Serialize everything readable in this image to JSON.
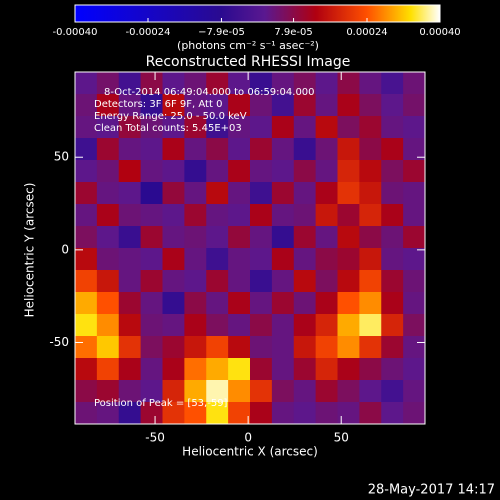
{
  "chart_data": {
    "type": "heatmap",
    "title": "Reconstructed RHESSI Image",
    "x_label": "Heliocentric X (arcsec)",
    "y_label": "Heliocentric Y (arcsec)",
    "xlim": [
      -93,
      95
    ],
    "ylim": [
      -94,
      96
    ],
    "xticks": [
      -50,
      0,
      50
    ],
    "yticks": [
      -50,
      0,
      50
    ],
    "annotations": [
      "8-Oct-2014 06:49:04.000 to 06:59:04.000",
      "Detectors: 3F 6F 9F, Att 0",
      "Energy Range: 25.0 - 50.0 keV",
      "Clean     Total counts: 5.45E+03"
    ],
    "peak_label": "Position of Peak = [53,-59]",
    "timestamp": "28-May-2017 14:17",
    "colorbar": {
      "label": "(photons cm⁻² s⁻¹ asec⁻²)",
      "lim": [
        -0.0004,
        0.0004
      ],
      "ticks": [
        {
          "value": -0.0004,
          "label": "-0.00040"
        },
        -0.00024,
        {
          "value": -7.9e-05,
          "label": "−7.9e-05"
        },
        {
          "value": 7.9e-05,
          "label": "7.9e-05"
        },
        0.00024,
        {
          "value": 0.0004,
          "label": "0.00040"
        }
      ],
      "colorscale": [
        [
          0,
          "#0000ff"
        ],
        [
          0.4,
          "#2a0a90"
        ],
        [
          0.52,
          "#5a1890"
        ],
        [
          0.66,
          "#b00010"
        ],
        [
          0.8,
          "#ff5000"
        ],
        [
          0.92,
          "#ffe000"
        ],
        [
          1,
          "#ffffff"
        ]
      ]
    },
    "z": [
      [
        2e-05,
        5e-05,
        -3e-05,
        8e-05,
        2e-05,
        4e-05,
        0.0001,
        2e-05,
        -5e-05,
        3e-05,
        6e-05,
        2e-05,
        8e-05,
        3e-05,
        -2e-05,
        4e-05
      ],
      [
        4e-05,
        0.00012,
        3e-05,
        -6e-05,
        0.00014,
        3e-05,
        2e-05,
        0.00012,
        4e-05,
        -3e-05,
        0.0001,
        3e-05,
        0.00012,
        6e-05,
        2e-05,
        5e-05
      ],
      [
        3e-05,
        2e-05,
        9e-05,
        4e-05,
        2e-05,
        0.0001,
        -4e-05,
        3e-05,
        2e-05,
        0.00012,
        3e-05,
        0.00014,
        6e-05,
        0.0001,
        3e-05,
        2e-05
      ],
      [
        -4e-05,
        0.0001,
        3e-05,
        2e-05,
        0.00012,
        3e-05,
        8e-05,
        2e-05,
        0.0001,
        3e-05,
        -5e-05,
        4e-05,
        0.00016,
        8e-05,
        0.00012,
        3e-05
      ],
      [
        2e-05,
        4e-05,
        0.00013,
        3e-05,
        2e-05,
        -6e-05,
        3e-05,
        0.00012,
        3e-05,
        2e-05,
        8e-05,
        3e-05,
        0.00018,
        0.00014,
        6e-05,
        0.0001
      ],
      [
        0.0001,
        3e-05,
        2e-05,
        -8e-05,
        9e-05,
        3e-05,
        0.00014,
        3e-05,
        -4e-05,
        0.0001,
        3e-05,
        0.00012,
        0.0002,
        0.00016,
        4e-05,
        3e-05
      ],
      [
        3e-05,
        0.00012,
        4e-05,
        3e-05,
        2e-05,
        0.0001,
        3e-05,
        2e-05,
        0.00012,
        3e-05,
        4e-05,
        0.00016,
        0.0001,
        0.00018,
        0.00012,
        3e-05
      ],
      [
        6e-05,
        2e-05,
        -5e-05,
        0.0001,
        3e-05,
        4e-05,
        2e-05,
        9e-05,
        3e-05,
        -6e-05,
        0.0001,
        3e-05,
        0.00014,
        8e-05,
        4e-05,
        0.0001
      ],
      [
        0.00014,
        4e-05,
        3e-05,
        2e-05,
        0.00012,
        3e-05,
        -4e-05,
        3e-05,
        2e-05,
        0.00012,
        3e-05,
        8e-05,
        0.0001,
        0.00016,
        3e-05,
        2e-05
      ],
      [
        0.00022,
        0.00016,
        3e-05,
        0.0001,
        3e-05,
        2e-05,
        0.0001,
        3e-05,
        -5e-05,
        3e-05,
        0.00014,
        6e-05,
        0.00014,
        0.00022,
        0.0001,
        4e-05
      ],
      [
        0.0003,
        0.00024,
        0.0001,
        3e-05,
        -6e-05,
        8e-05,
        3e-05,
        0.00012,
        3e-05,
        0.0001,
        4e-05,
        0.00012,
        0.00024,
        0.00028,
        0.00012,
        3e-05
      ],
      [
        0.00034,
        0.00028,
        0.00014,
        4e-05,
        3e-05,
        0.00012,
        6e-05,
        3e-05,
        8e-05,
        3e-05,
        0.00012,
        0.00018,
        0.0003,
        0.00036,
        0.00018,
        6e-05
      ],
      [
        0.00026,
        0.00032,
        0.0002,
        6e-05,
        0.0001,
        0.00016,
        0.00022,
        0.00014,
        4e-05,
        3e-05,
        0.00016,
        0.00022,
        0.00028,
        0.0002,
        0.0001,
        3e-05
      ],
      [
        0.00014,
        0.00022,
        0.00012,
        3e-05,
        0.00012,
        0.00026,
        0.0003,
        0.00034,
        0.0001,
        3e-05,
        0.0001,
        0.00018,
        0.00012,
        8e-05,
        4e-05,
        2e-05
      ],
      [
        8e-05,
        0.0001,
        4e-05,
        2e-05,
        0.00018,
        0.0003,
        0.00038,
        0.00028,
        0.0002,
        6e-05,
        3e-05,
        0.0001,
        6e-05,
        2e-05,
        -3e-05,
        3e-05
      ],
      [
        4e-05,
        3e-05,
        -6e-05,
        0.0001,
        0.0002,
        0.00024,
        0.00034,
        0.00022,
        0.00012,
        3e-05,
        2e-05,
        4e-05,
        3e-05,
        8e-05,
        2e-05,
        4e-05
      ]
    ]
  }
}
